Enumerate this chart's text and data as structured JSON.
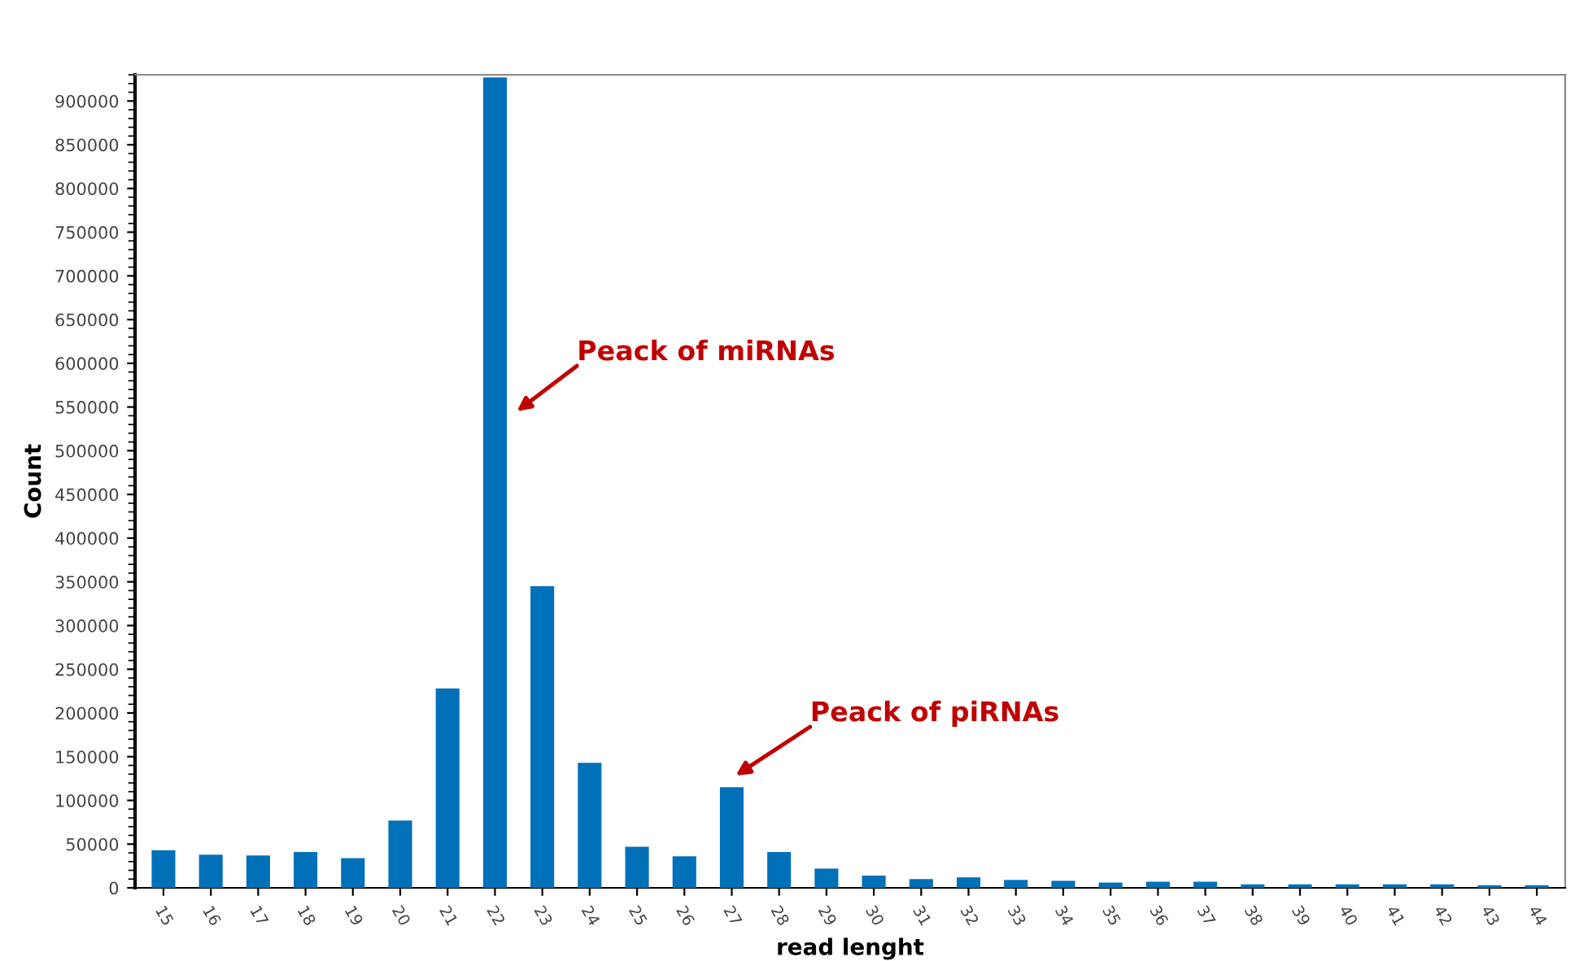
{
  "chart_data": {
    "type": "bar",
    "xlabel": "read lenght",
    "ylabel": "Count",
    "categories": [
      "15",
      "16",
      "17",
      "18",
      "19",
      "20",
      "21",
      "22",
      "23",
      "24",
      "25",
      "26",
      "27",
      "28",
      "29",
      "30",
      "31",
      "32",
      "33",
      "34",
      "35",
      "36",
      "37",
      "38",
      "39",
      "40",
      "41",
      "42",
      "43",
      "44"
    ],
    "values": [
      43000,
      38000,
      37000,
      41000,
      34000,
      77000,
      228000,
      927000,
      345000,
      143000,
      47000,
      36000,
      115000,
      41000,
      22000,
      14000,
      10000,
      12000,
      9000,
      8000,
      6000,
      7000,
      7000,
      4000,
      4000,
      4000,
      4000,
      4000,
      3000,
      3000
    ],
    "color": "#0070b8",
    "ylim": [
      0,
      930000
    ],
    "yticks": [
      0,
      50000,
      100000,
      150000,
      200000,
      250000,
      300000,
      350000,
      400000,
      450000,
      500000,
      550000,
      600000,
      650000,
      700000,
      750000,
      800000,
      850000,
      900000
    ],
    "grid": false,
    "annotations": [
      "Peack of miRNAs",
      "Peack of piRNAs"
    ]
  }
}
